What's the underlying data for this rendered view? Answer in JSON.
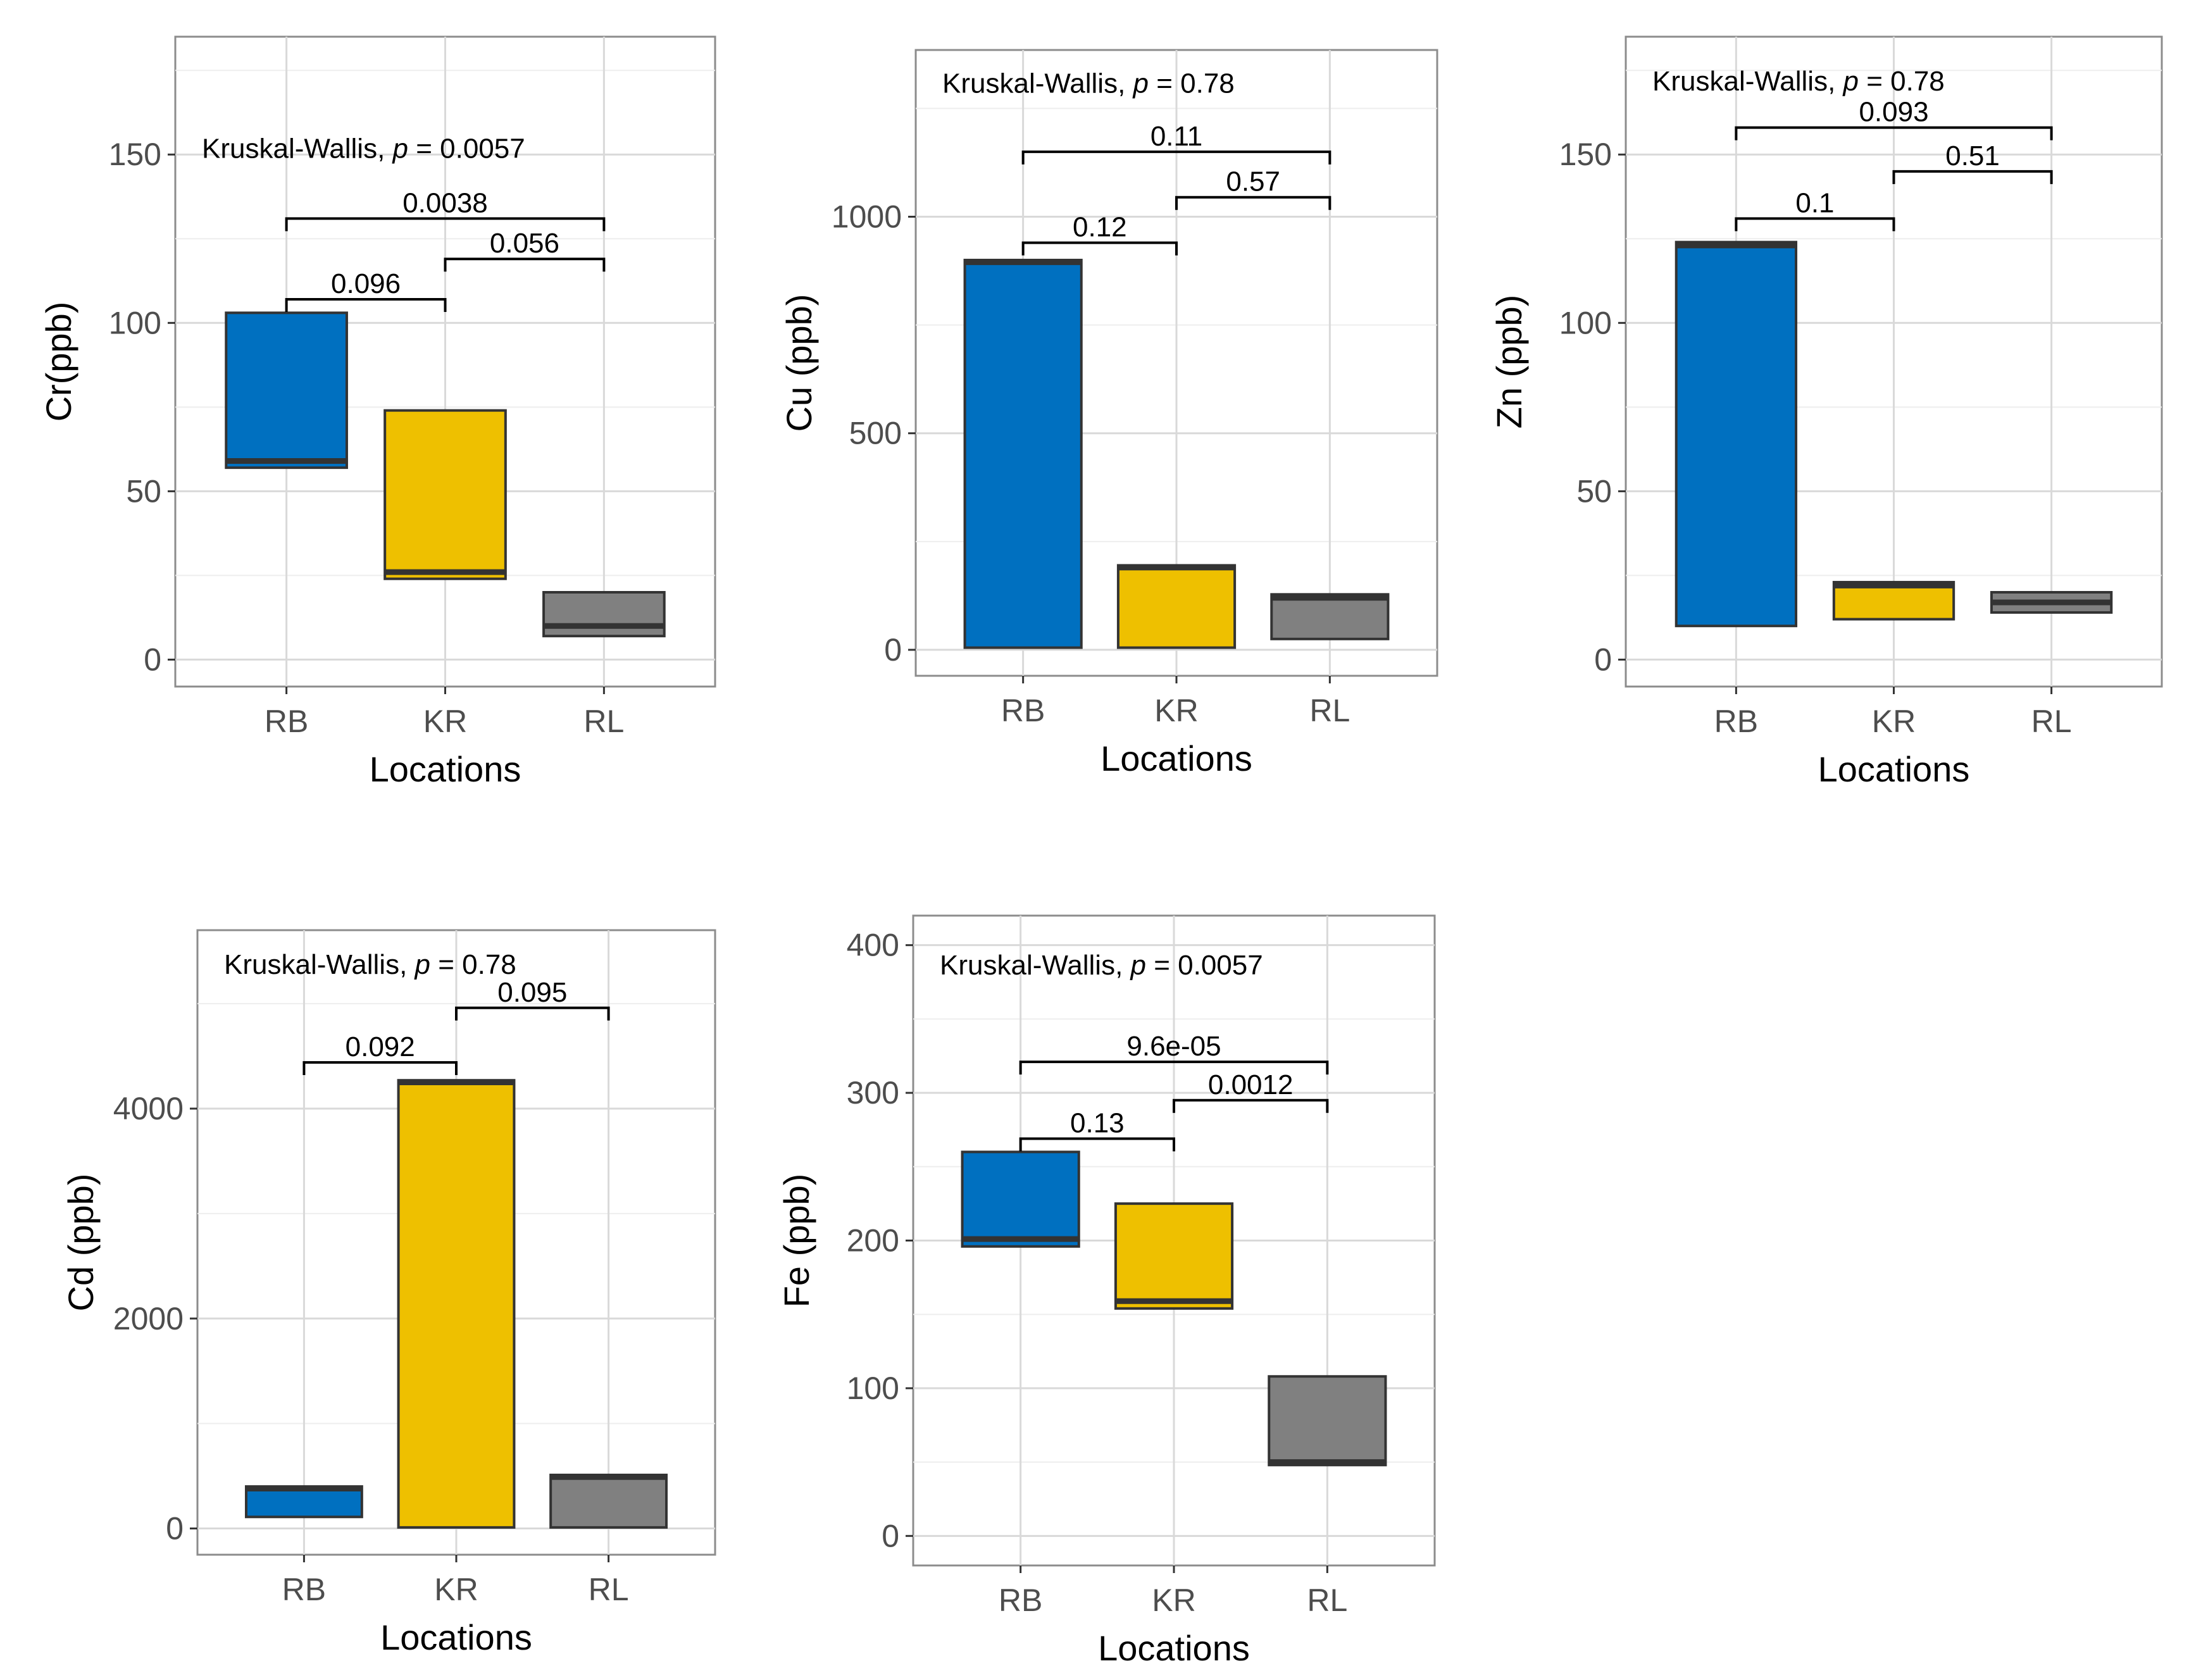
{
  "colors": {
    "RB": "#0070C0",
    "KR": "#EEC000",
    "RL": "#808080"
  },
  "chart_data": [
    {
      "type": "boxplot",
      "xlabel": "Locations",
      "ylabel": "Cr(ppb)",
      "categories": [
        "RB",
        "KR",
        "RL"
      ],
      "ylim": [
        -8,
        185
      ],
      "yticks": [
        0,
        50,
        100,
        150
      ],
      "tick_labels": [
        "0",
        "50",
        "100",
        "150"
      ],
      "boxes": [
        {
          "category": "RB",
          "lower": 57,
          "median": 59,
          "upper": 103
        },
        {
          "category": "KR",
          "lower": 24,
          "median": 26,
          "upper": 74
        },
        {
          "category": "RL",
          "lower": 7,
          "median": 10,
          "upper": 20
        }
      ],
      "test": {
        "prefix": "Kruskal-Wallis,",
        "p_symbol": "p",
        "p_text": "= 0.0057",
        "y": 152
      },
      "comparisons": [
        {
          "from": "RB",
          "to": "KR",
          "label": "0.096",
          "y": 107
        },
        {
          "from": "KR",
          "to": "RL",
          "label": "0.056",
          "y": 119
        },
        {
          "from": "RB",
          "to": "RL",
          "label": "0.0038",
          "y": 131
        }
      ]
    },
    {
      "type": "boxplot",
      "xlabel": "Locations",
      "ylabel": "Cu (ppb)",
      "categories": [
        "RB",
        "KR",
        "RL"
      ],
      "ylim": [
        -60,
        1385
      ],
      "yticks": [
        0,
        500,
        1000
      ],
      "tick_labels": [
        "0",
        "500",
        "1000"
      ],
      "boxes": [
        {
          "category": "RB",
          "lower": 5,
          "median": 895,
          "upper": 900
        },
        {
          "category": "KR",
          "lower": 5,
          "median": 190,
          "upper": 195
        },
        {
          "category": "RL",
          "lower": 25,
          "median": 120,
          "upper": 128
        }
      ],
      "test": {
        "prefix": "Kruskal-Wallis,",
        "p_symbol": "p",
        "p_text": "= 0.78",
        "y": 1310
      },
      "comparisons": [
        {
          "from": "RB",
          "to": "KR",
          "label": "0.12",
          "y": 940
        },
        {
          "from": "KR",
          "to": "RL",
          "label": "0.57",
          "y": 1045
        },
        {
          "from": "RB",
          "to": "RL",
          "label": "0.11",
          "y": 1150
        }
      ]
    },
    {
      "type": "boxplot",
      "xlabel": "Locations",
      "ylabel": "Zn (ppb)",
      "categories": [
        "RB",
        "KR",
        "RL"
      ],
      "ylim": [
        -8,
        185
      ],
      "yticks": [
        0,
        50,
        100,
        150
      ],
      "tick_labels": [
        "0",
        "50",
        "100",
        "150"
      ],
      "boxes": [
        {
          "category": "RB",
          "lower": 10,
          "median": 123,
          "upper": 124
        },
        {
          "category": "KR",
          "lower": 12,
          "median": 22,
          "upper": 23
        },
        {
          "category": "RL",
          "lower": 14,
          "median": 17,
          "upper": 20
        }
      ],
      "test": {
        "prefix": "Kruskal-Wallis,",
        "p_symbol": "p",
        "p_text": "= 0.78",
        "y": 172
      },
      "comparisons": [
        {
          "from": "RB",
          "to": "KR",
          "label": "0.1",
          "y": 131
        },
        {
          "from": "KR",
          "to": "RL",
          "label": "0.51",
          "y": 145
        },
        {
          "from": "RB",
          "to": "RL",
          "label": "0.093",
          "y": 158
        }
      ]
    },
    {
      "type": "boxplot",
      "xlabel": "Locations",
      "ylabel": "Cd (ppb)",
      "categories": [
        "RB",
        "KR",
        "RL"
      ],
      "ylim": [
        -250,
        5700
      ],
      "yticks": [
        0,
        2000,
        4000
      ],
      "tick_labels": [
        "0",
        "2000",
        "4000"
      ],
      "boxes": [
        {
          "category": "RB",
          "lower": 110,
          "median": 380,
          "upper": 400
        },
        {
          "category": "KR",
          "lower": 10,
          "median": 4250,
          "upper": 4270
        },
        {
          "category": "RL",
          "lower": 10,
          "median": 490,
          "upper": 510
        }
      ],
      "test": {
        "prefix": "Kruskal-Wallis,",
        "p_symbol": "p",
        "p_text": "= 0.78",
        "y": 5380
      },
      "comparisons": [
        {
          "from": "RB",
          "to": "KR",
          "label": "0.092",
          "y": 4440
        },
        {
          "from": "KR",
          "to": "RL",
          "label": "0.095",
          "y": 4960
        }
      ]
    },
    {
      "type": "boxplot",
      "xlabel": "Locations",
      "ylabel": "Fe (ppb)",
      "categories": [
        "RB",
        "KR",
        "RL"
      ],
      "ylim": [
        -20,
        420
      ],
      "yticks": [
        0,
        100,
        200,
        300,
        400
      ],
      "tick_labels": [
        "0",
        "100",
        "200",
        "300",
        "400"
      ],
      "boxes": [
        {
          "category": "RB",
          "lower": 196,
          "median": 201,
          "upper": 260
        },
        {
          "category": "KR",
          "lower": 154,
          "median": 159,
          "upper": 225
        },
        {
          "category": "RL",
          "lower": 48,
          "median": 50,
          "upper": 108
        }
      ],
      "test": {
        "prefix": "Kruskal-Wallis,",
        "p_symbol": "p",
        "p_text": "= 0.0057",
        "y": 387
      },
      "comparisons": [
        {
          "from": "RB",
          "to": "KR",
          "label": "0.13",
          "y": 269
        },
        {
          "from": "KR",
          "to": "RL",
          "label": "0.0012",
          "y": 295
        },
        {
          "from": "RB",
          "to": "RL",
          "label": "9.6e-05",
          "y": 321
        }
      ]
    }
  ]
}
